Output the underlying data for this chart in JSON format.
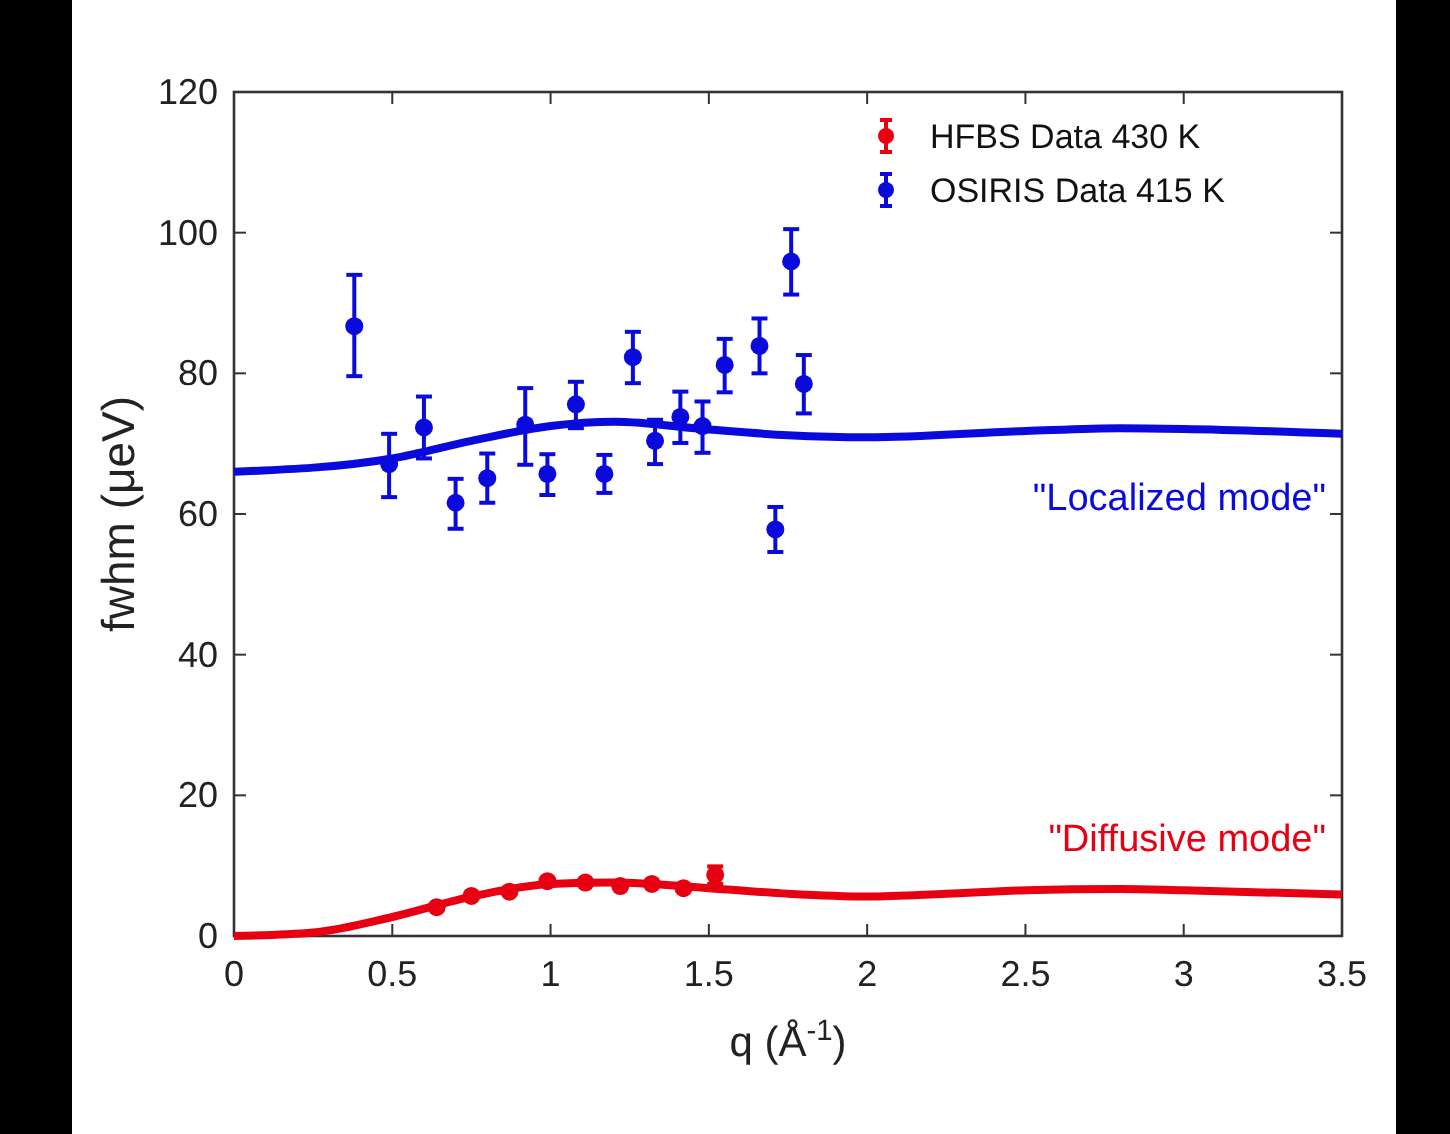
{
  "chart_data": {
    "type": "scatter",
    "xlabel": "q (Å$^{-1}$)",
    "ylabel": "fwhm (μeV)",
    "xlim": [
      0,
      3.5
    ],
    "ylim": [
      0,
      120
    ],
    "xticks": [
      0,
      0.5,
      1,
      1.5,
      2,
      2.5,
      3,
      3.5
    ],
    "yticks": [
      0,
      20,
      40,
      60,
      80,
      100,
      120
    ],
    "grid": false,
    "legend": "top right",
    "marker": "circle",
    "series": [
      {
        "name": "HFBS Data 430 K",
        "color": "#e60012",
        "x": [
          0.64,
          0.75,
          0.87,
          0.99,
          1.11,
          1.22,
          1.32,
          1.42,
          1.52
        ],
        "values": [
          4.1,
          5.7,
          6.3,
          7.8,
          7.6,
          7.1,
          7.4,
          6.8,
          8.7
        ],
        "errors": [
          null,
          null,
          null,
          null,
          null,
          null,
          null,
          null,
          [
            7.4,
            9.9
          ]
        ]
      },
      {
        "name": "OSIRIS Data 415 K",
        "color": "#0a0adc",
        "x": [
          0.38,
          0.49,
          0.6,
          0.7,
          0.8,
          0.92,
          0.99,
          1.08,
          1.17,
          1.26,
          1.33,
          1.41,
          1.48,
          1.55,
          1.66,
          1.71,
          1.76,
          1.8
        ],
        "values": [
          86.7,
          67.1,
          72.3,
          61.6,
          65.1,
          72.7,
          65.7,
          75.6,
          65.7,
          82.3,
          70.4,
          73.8,
          72.5,
          81.2,
          83.9,
          57.8,
          95.9,
          78.5
        ],
        "errors": [
          [
            79.6,
            94
          ],
          [
            62.4,
            71.4
          ],
          [
            67.9,
            76.7
          ],
          [
            57.9,
            65
          ],
          [
            61.6,
            68.6
          ],
          [
            67,
            77.9
          ],
          [
            62.7,
            68.5
          ],
          [
            72.2,
            78.8
          ],
          [
            63,
            68.4
          ],
          [
            78.6,
            85.9
          ],
          [
            67.1,
            73.4
          ],
          [
            70.1,
            77.4
          ],
          [
            68.7,
            76
          ],
          [
            77.3,
            84.9
          ],
          [
            80,
            87.8
          ],
          [
            54.6,
            61
          ],
          [
            91.2,
            100.5
          ],
          [
            74.3,
            82.6
          ]
        ]
      },
      {
        "type": "line",
        "color": "#0a0adc",
        "marker": "none",
        "line_style": "solid",
        "x": [
          0,
          0.5,
          0.75,
          1,
          1.2,
          1.5,
          1.75,
          2,
          2.5,
          2.8,
          3,
          3.5
        ],
        "values": [
          66,
          67.9,
          70.4,
          72.5,
          73.1,
          72,
          71.2,
          70.9,
          71.8,
          72.2,
          72.1,
          71.4
        ]
      },
      {
        "type": "line",
        "color": "#e60012",
        "marker": "none",
        "line_style": "solid",
        "x": [
          0,
          0.25,
          0.5,
          0.75,
          1,
          1.2,
          1.5,
          1.75,
          2,
          2.25,
          2.5,
          2.8,
          3,
          3.5
        ],
        "values": [
          0,
          0.5,
          2.7,
          5.6,
          7.4,
          7.6,
          6.8,
          6,
          5.6,
          6,
          6.5,
          6.7,
          6.5,
          5.9
        ]
      }
    ],
    "annotations": [
      "\"Localized mode\"",
      "\"Diffusive mode\""
    ]
  }
}
